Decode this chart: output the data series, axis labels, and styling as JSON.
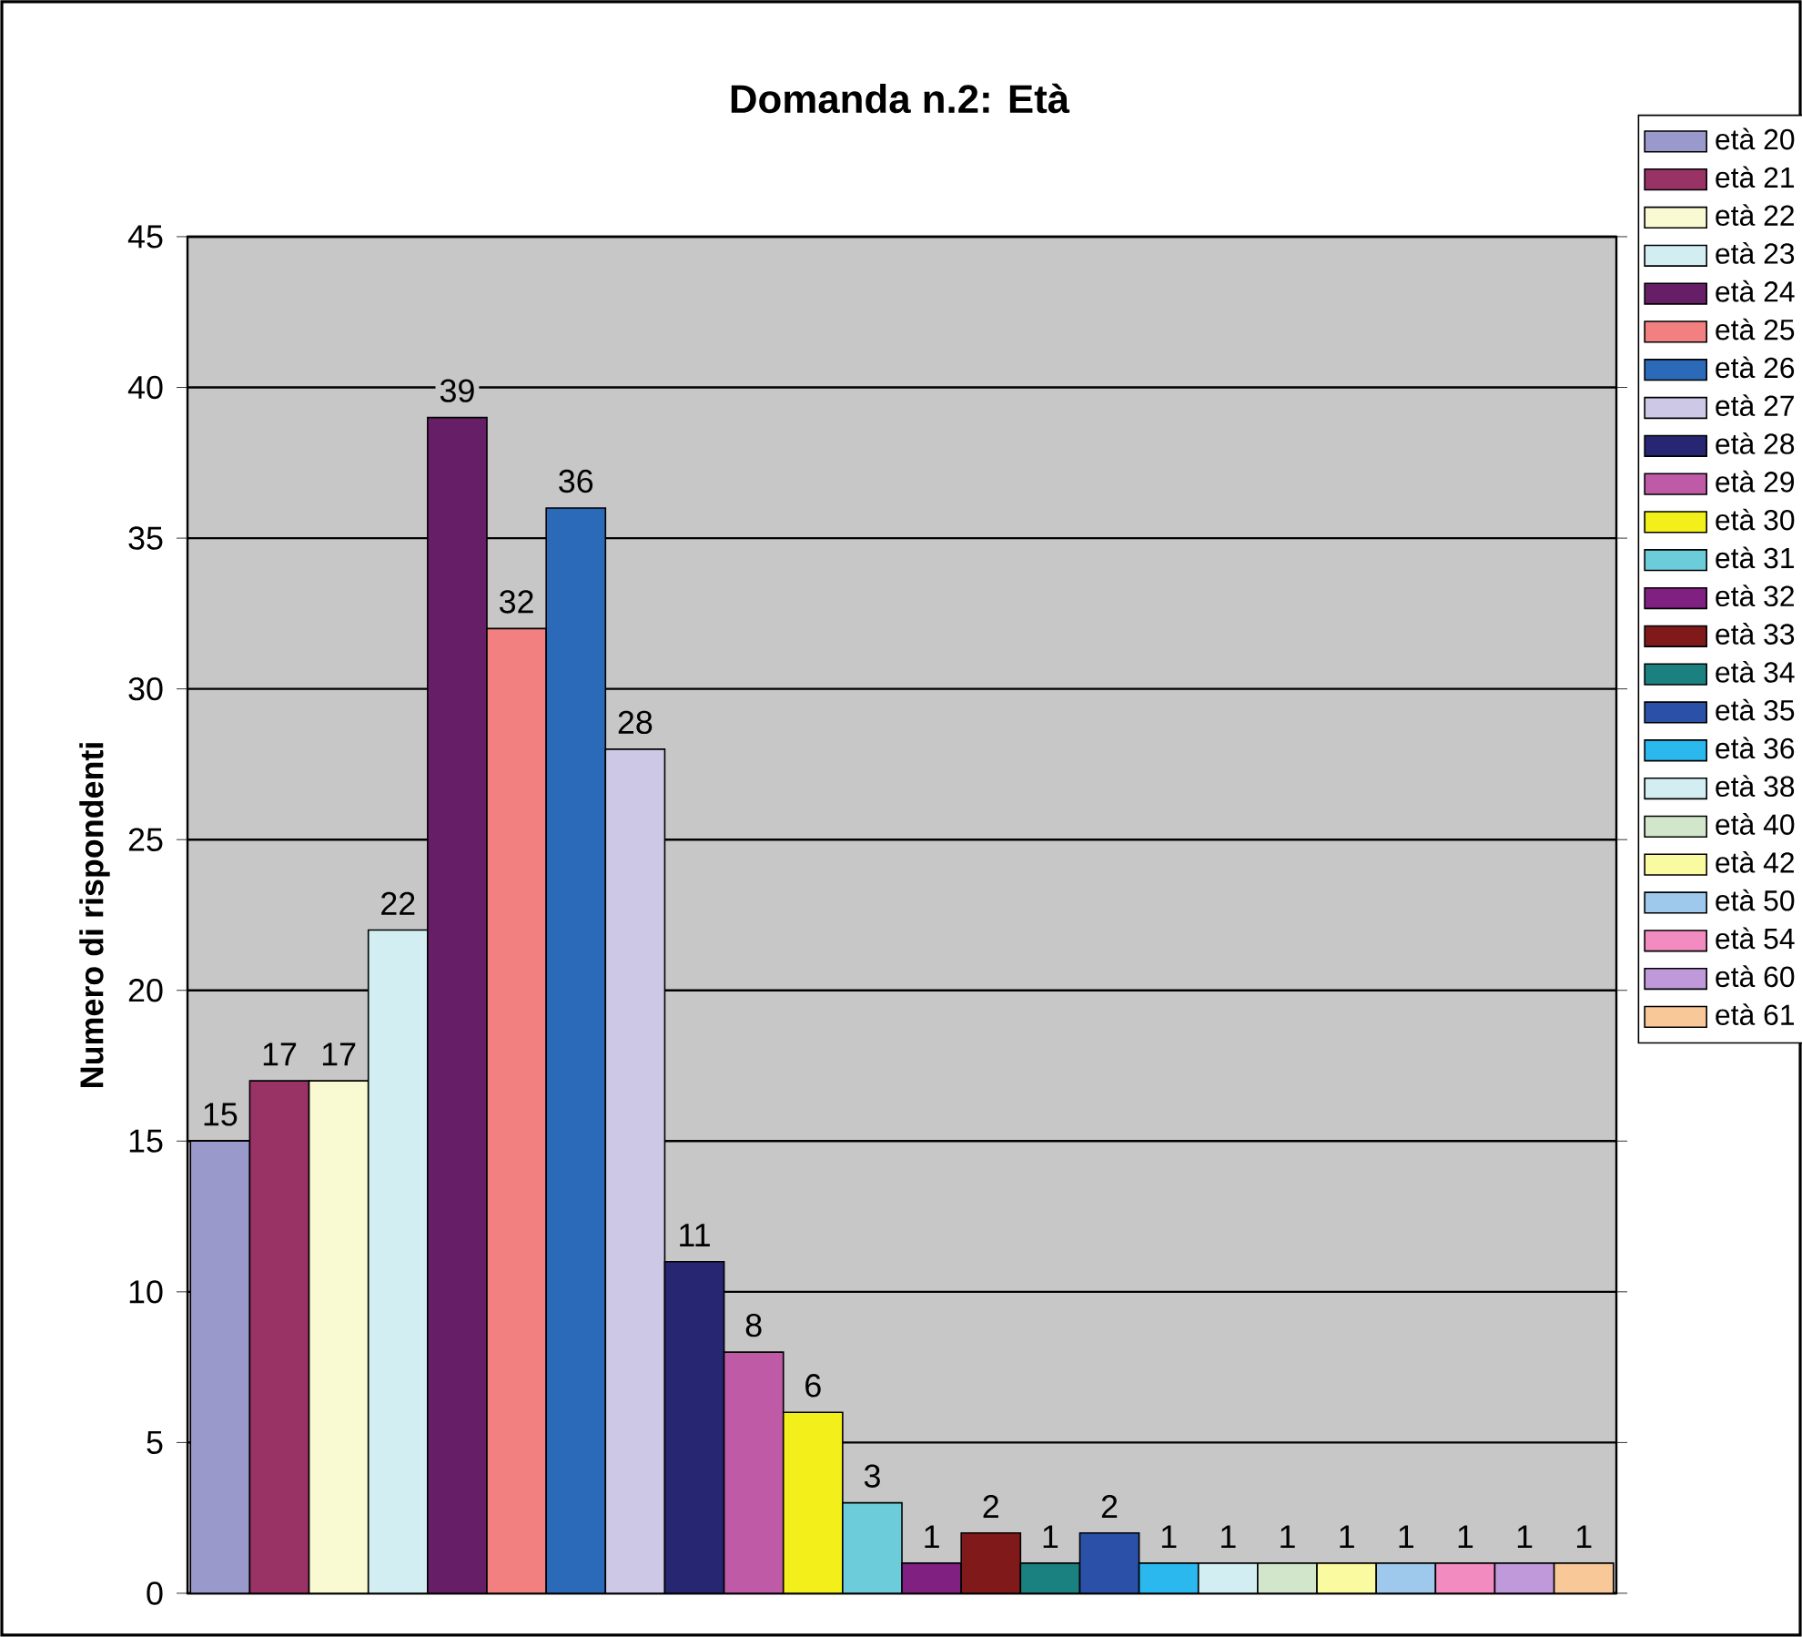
{
  "chart_data": {
    "type": "bar",
    "title": "Domanda n.2: Età",
    "ylabel": "Numero di rispondenti",
    "categories": [
      null,
      null,
      null,
      null,
      null,
      null,
      null,
      null,
      null,
      null,
      null,
      null,
      null,
      null,
      null,
      null,
      null,
      null,
      null,
      null,
      null,
      null,
      null,
      null
    ],
    "series": [
      {
        "name": "età 20",
        "color": "#9999cc",
        "values": [
          15,
          null,
          null,
          null,
          null,
          null,
          null,
          null,
          null,
          null,
          null,
          null,
          null,
          null,
          null,
          null,
          null,
          null,
          null,
          null,
          null,
          null,
          null,
          null
        ]
      },
      {
        "name": "età 21",
        "color": "#993366",
        "values": [
          null,
          17,
          null,
          null,
          null,
          null,
          null,
          null,
          null,
          null,
          null,
          null,
          null,
          null,
          null,
          null,
          null,
          null,
          null,
          null,
          null,
          null,
          null,
          null
        ]
      },
      {
        "name": "età 22",
        "color": "#fafad2",
        "values": [
          null,
          null,
          17,
          null,
          null,
          null,
          null,
          null,
          null,
          null,
          null,
          null,
          null,
          null,
          null,
          null,
          null,
          null,
          null,
          null,
          null,
          null,
          null,
          null
        ]
      },
      {
        "name": "età 23",
        "color": "#d2eef2",
        "values": [
          null,
          null,
          null,
          22,
          null,
          null,
          null,
          null,
          null,
          null,
          null,
          null,
          null,
          null,
          null,
          null,
          null,
          null,
          null,
          null,
          null,
          null,
          null,
          null
        ]
      },
      {
        "name": "età 24",
        "color": "#661f66",
        "values": [
          null,
          null,
          null,
          null,
          39,
          null,
          null,
          null,
          null,
          null,
          null,
          null,
          null,
          null,
          null,
          null,
          null,
          null,
          null,
          null,
          null,
          null,
          null,
          null
        ]
      },
      {
        "name": "età 25",
        "color": "#f28080",
        "values": [
          null,
          null,
          null,
          null,
          null,
          32,
          null,
          null,
          null,
          null,
          null,
          null,
          null,
          null,
          null,
          null,
          null,
          null,
          null,
          null,
          null,
          null,
          null,
          null
        ]
      },
      {
        "name": "età 26",
        "color": "#2a6ab8",
        "values": [
          null,
          null,
          null,
          null,
          null,
          null,
          36,
          null,
          null,
          null,
          null,
          null,
          null,
          null,
          null,
          null,
          null,
          null,
          null,
          null,
          null,
          null,
          null,
          null
        ]
      },
      {
        "name": "età 27",
        "color": "#ccc8e6",
        "values": [
          null,
          null,
          null,
          null,
          null,
          null,
          null,
          28,
          null,
          null,
          null,
          null,
          null,
          null,
          null,
          null,
          null,
          null,
          null,
          null,
          null,
          null,
          null,
          null
        ]
      },
      {
        "name": "età 28",
        "color": "#262673",
        "values": [
          null,
          null,
          null,
          null,
          null,
          null,
          null,
          null,
          11,
          null,
          null,
          null,
          null,
          null,
          null,
          null,
          null,
          null,
          null,
          null,
          null,
          null,
          null,
          null
        ]
      },
      {
        "name": "età 29",
        "color": "#bf5aa6",
        "values": [
          null,
          null,
          null,
          null,
          null,
          null,
          null,
          null,
          null,
          8,
          null,
          null,
          null,
          null,
          null,
          null,
          null,
          null,
          null,
          null,
          null,
          null,
          null,
          null
        ]
      },
      {
        "name": "età 30",
        "color": "#f2ef1a",
        "values": [
          null,
          null,
          null,
          null,
          null,
          null,
          null,
          null,
          null,
          null,
          6,
          null,
          null,
          null,
          null,
          null,
          null,
          null,
          null,
          null,
          null,
          null,
          null,
          null
        ]
      },
      {
        "name": "età 31",
        "color": "#6cccd9",
        "values": [
          null,
          null,
          null,
          null,
          null,
          null,
          null,
          null,
          null,
          null,
          null,
          3,
          null,
          null,
          null,
          null,
          null,
          null,
          null,
          null,
          null,
          null,
          null,
          null
        ]
      },
      {
        "name": "età 32",
        "color": "#802080",
        "values": [
          null,
          null,
          null,
          null,
          null,
          null,
          null,
          null,
          null,
          null,
          null,
          null,
          1,
          null,
          null,
          null,
          null,
          null,
          null,
          null,
          null,
          null,
          null,
          null
        ]
      },
      {
        "name": "età 33",
        "color": "#801a1a",
        "values": [
          null,
          null,
          null,
          null,
          null,
          null,
          null,
          null,
          null,
          null,
          null,
          null,
          null,
          2,
          null,
          null,
          null,
          null,
          null,
          null,
          null,
          null,
          null,
          null
        ]
      },
      {
        "name": "età 34",
        "color": "#1a8080",
        "values": [
          null,
          null,
          null,
          null,
          null,
          null,
          null,
          null,
          null,
          null,
          null,
          null,
          null,
          null,
          1,
          null,
          null,
          null,
          null,
          null,
          null,
          null,
          null,
          null
        ]
      },
      {
        "name": "età 35",
        "color": "#2a50a8",
        "values": [
          null,
          null,
          null,
          null,
          null,
          null,
          null,
          null,
          null,
          null,
          null,
          null,
          null,
          null,
          null,
          2,
          null,
          null,
          null,
          null,
          null,
          null,
          null,
          null
        ]
      },
      {
        "name": "età 36",
        "color": "#2ab8ee",
        "values": [
          null,
          null,
          null,
          null,
          null,
          null,
          null,
          null,
          null,
          null,
          null,
          null,
          null,
          null,
          null,
          null,
          1,
          null,
          null,
          null,
          null,
          null,
          null,
          null
        ]
      },
      {
        "name": "età 38",
        "color": "#d2eef2",
        "values": [
          null,
          null,
          null,
          null,
          null,
          null,
          null,
          null,
          null,
          null,
          null,
          null,
          null,
          null,
          null,
          null,
          null,
          1,
          null,
          null,
          null,
          null,
          null,
          null
        ]
      },
      {
        "name": "età 40",
        "color": "#d2e6cc",
        "values": [
          null,
          null,
          null,
          null,
          null,
          null,
          null,
          null,
          null,
          null,
          null,
          null,
          null,
          null,
          null,
          null,
          null,
          null,
          1,
          null,
          null,
          null,
          null,
          null
        ]
      },
      {
        "name": "età 42",
        "color": "#fafaa0",
        "values": [
          null,
          null,
          null,
          null,
          null,
          null,
          null,
          null,
          null,
          null,
          null,
          null,
          null,
          null,
          null,
          null,
          null,
          null,
          null,
          1,
          null,
          null,
          null,
          null
        ]
      },
      {
        "name": "età 50",
        "color": "#9ec8ec",
        "values": [
          null,
          null,
          null,
          null,
          null,
          null,
          null,
          null,
          null,
          null,
          null,
          null,
          null,
          null,
          null,
          null,
          null,
          null,
          null,
          null,
          1,
          null,
          null,
          null
        ]
      },
      {
        "name": "età 54",
        "color": "#f28cc0",
        "values": [
          null,
          null,
          null,
          null,
          null,
          null,
          null,
          null,
          null,
          null,
          null,
          null,
          null,
          null,
          null,
          null,
          null,
          null,
          null,
          null,
          null,
          1,
          null,
          null
        ]
      },
      {
        "name": "età 60",
        "color": "#bf99d9",
        "values": [
          null,
          null,
          null,
          null,
          null,
          null,
          null,
          null,
          null,
          null,
          null,
          null,
          null,
          null,
          null,
          null,
          null,
          null,
          null,
          null,
          null,
          null,
          1,
          null
        ]
      },
      {
        "name": "età 61",
        "color": "#f8c898",
        "values": [
          null,
          null,
          null,
          null,
          null,
          null,
          null,
          null,
          null,
          null,
          null,
          null,
          null,
          null,
          null,
          null,
          null,
          null,
          null,
          null,
          null,
          null,
          null,
          1
        ]
      }
    ],
    "ylim": [
      0,
      45
    ],
    "yticks": [
      0,
      5,
      10,
      15,
      20,
      25,
      30,
      35,
      40,
      45
    ],
    "grid": "y",
    "legend": "right",
    "data_labels": true
  }
}
